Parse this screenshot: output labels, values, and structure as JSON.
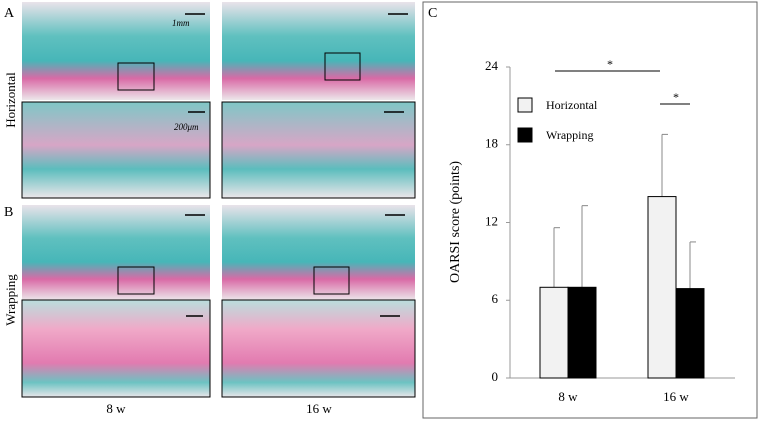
{
  "panels": {
    "a": "A",
    "b": "B",
    "c": "C"
  },
  "rows": [
    "Horizontal",
    "Wrapping"
  ],
  "columns": [
    "8 w",
    "16 w"
  ],
  "scale_labels": [
    "1mm",
    "200μm"
  ],
  "chart_data": {
    "type": "bar",
    "ylabel": "OARSI score (points)",
    "categories": [
      "8 w",
      "16 w"
    ],
    "series": [
      {
        "name": "Horizontal",
        "color": "#f2f2f2",
        "values": [
          7,
          14
        ],
        "errors": [
          4.6,
          4.8
        ]
      },
      {
        "name": "Wrapping",
        "color": "#000000",
        "values": [
          7,
          6.9
        ],
        "errors": [
          6.3,
          3.6
        ]
      }
    ],
    "ylim": [
      0,
      24
    ],
    "yticks": [
      0,
      6,
      12,
      18,
      24
    ],
    "annotations": [
      "*",
      "*"
    ]
  }
}
